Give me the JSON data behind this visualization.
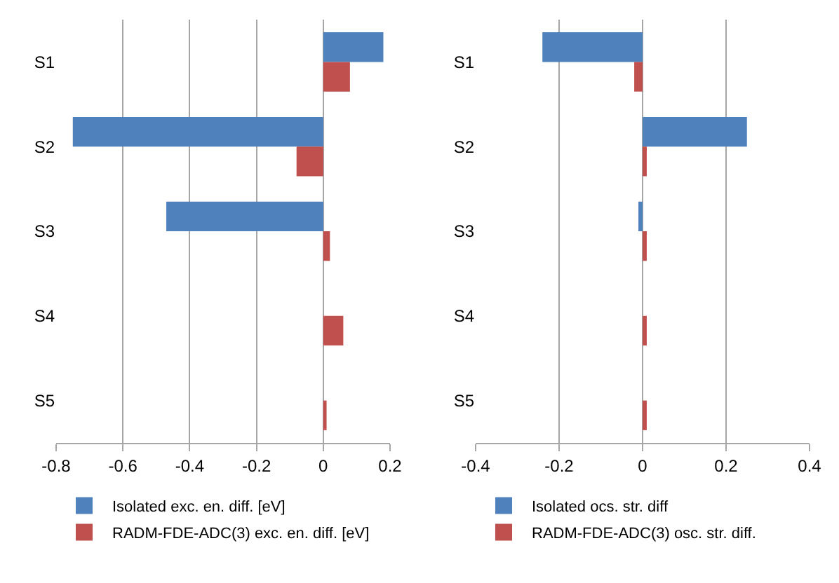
{
  "chart_data": [
    {
      "type": "bar",
      "orientation": "horizontal",
      "categories": [
        "S1",
        "S2",
        "S3",
        "S4",
        "S5"
      ],
      "series": [
        {
          "name": "Isolated exc. en. diff. [eV]",
          "color": "#4f81bd",
          "values": [
            0.18,
            -0.75,
            -0.47,
            0,
            0
          ]
        },
        {
          "name": "RADM-FDE-ADC(3) exc. en. diff. [eV]",
          "color": "#c0504d",
          "values": [
            0.08,
            -0.08,
            0.02,
            0.06,
            0.01
          ]
        }
      ],
      "xlim": [
        -0.8,
        0.2
      ],
      "xticks": [
        -0.8,
        -0.6,
        -0.4,
        -0.2,
        0,
        0.2
      ],
      "grid": "x",
      "legend": "bottom"
    },
    {
      "type": "bar",
      "orientation": "horizontal",
      "categories": [
        "S1",
        "S2",
        "S3",
        "S4",
        "S5"
      ],
      "series": [
        {
          "name": "Isolated ocs. str. diff",
          "color": "#4f81bd",
          "values": [
            -0.24,
            0.25,
            -0.01,
            0,
            0
          ]
        },
        {
          "name": "RADM-FDE-ADC(3) osc. str. diff.",
          "color": "#c0504d",
          "values": [
            -0.02,
            0.01,
            0.01,
            0.01,
            0.01
          ]
        }
      ],
      "xlim": [
        -0.4,
        0.4
      ],
      "xticks": [
        -0.4,
        -0.2,
        0,
        0.2,
        0.4
      ],
      "grid": "x",
      "legend": "bottom"
    }
  ]
}
